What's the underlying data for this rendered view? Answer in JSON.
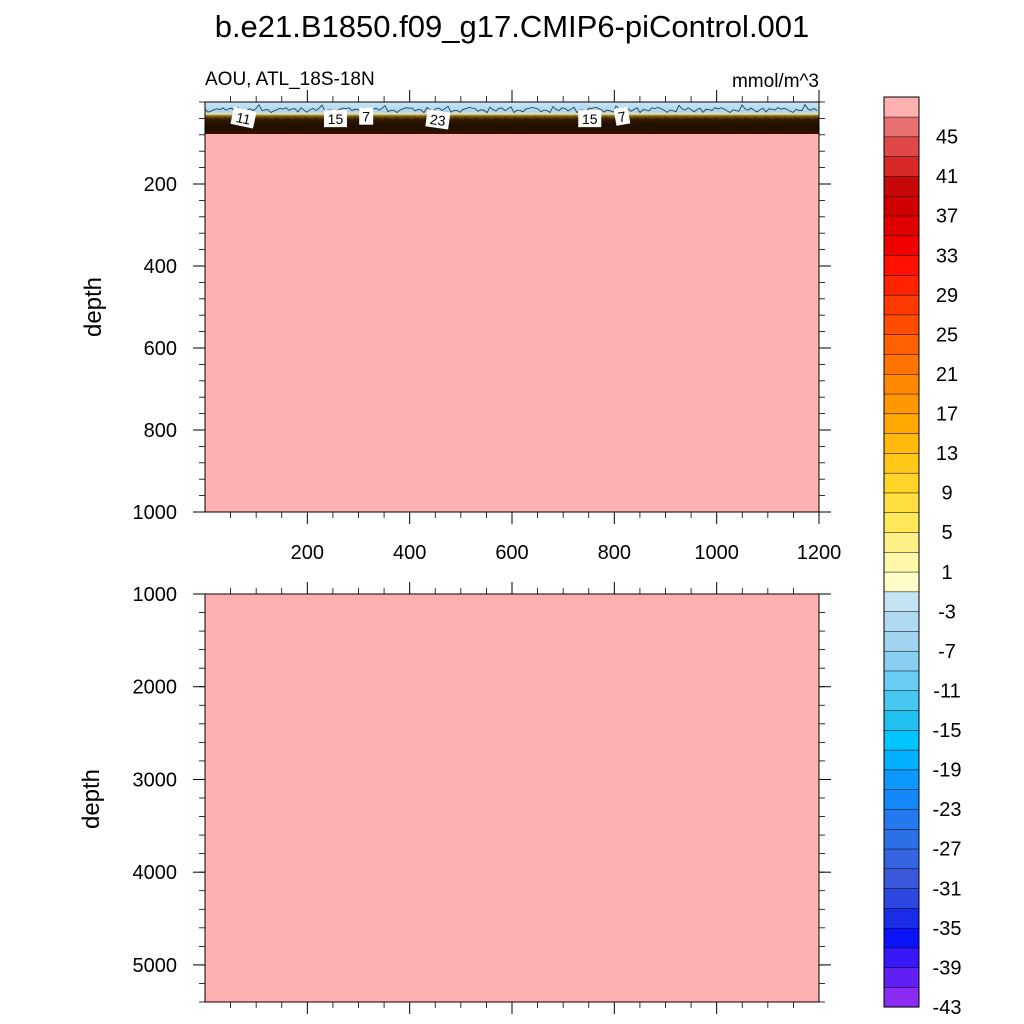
{
  "title": "b.e21.B1850.f09_g17.CMIP6-piControl.001",
  "left_string": "AOU, ATL_18S-18N",
  "right_string": "mmol/m^3",
  "colors": {
    "fill": "#ffb0b0",
    "surface_band": "#b3d8ee",
    "dark_band": "#2a1200",
    "colorbar": [
      "#8b2cf4",
      "#6020f4",
      "#3818f8",
      "#0a12fa",
      "#1a2ce8",
      "#2c48e0",
      "#3a58dc",
      "#3664e0",
      "#2c70e8",
      "#2478f0",
      "#1488f8",
      "#0c98fc",
      "#00b0fc",
      "#00c4fc",
      "#20c0f0",
      "#48c8f0",
      "#68ccf4",
      "#88cff0",
      "#a0d4f0",
      "#b0daf0",
      "#c4e4f4",
      "#fffcc8",
      "#fff8a8",
      "#fff088",
      "#ffe858",
      "#ffe040",
      "#ffd428",
      "#ffc818",
      "#ffb80c",
      "#ffa800",
      "#ff9800",
      "#ff8800",
      "#ff7400",
      "#ff6000",
      "#ff4c00",
      "#ff3a00",
      "#ff2400",
      "#ff1000",
      "#f00000",
      "#e00000",
      "#d00000",
      "#c80808",
      "#d82828",
      "#e04848",
      "#e87070",
      "#ffb0b0"
    ]
  },
  "chart_data": [
    {
      "type": "contour",
      "panel": "upper",
      "xlim": [
        0,
        1200
      ],
      "ylim": [
        1000,
        0
      ],
      "ylabel": "depth",
      "xticks": [
        200,
        400,
        600,
        800,
        1000,
        1200
      ],
      "yticks": [
        200,
        400,
        600,
        800,
        1000
      ],
      "contour_labels": [
        {
          "text": "11",
          "x": 75,
          "y": 52,
          "angle": 12
        },
        {
          "text": "15",
          "x": 255,
          "y": 54,
          "angle": 0
        },
        {
          "text": "7",
          "x": 315,
          "y": 48,
          "angle": 0
        },
        {
          "text": "23",
          "x": 455,
          "y": 56,
          "angle": 8
        },
        {
          "text": "15",
          "x": 752,
          "y": 54,
          "angle": 0
        },
        {
          "text": "7",
          "x": 815,
          "y": 48,
          "angle": -10
        }
      ]
    },
    {
      "type": "contour",
      "panel": "lower",
      "xlim": [
        0,
        1200
      ],
      "ylim": [
        5400,
        1000
      ],
      "ylabel": "depth",
      "yticks": [
        1000,
        2000,
        3000,
        4000,
        5000
      ]
    }
  ],
  "colorbar": {
    "labels": [
      "45",
      "41",
      "37",
      "33",
      "29",
      "25",
      "21",
      "17",
      "13",
      "9",
      "5",
      "1",
      "-3",
      "-7",
      "-11",
      "-15",
      "-19",
      "-23",
      "-27",
      "-31",
      "-35",
      "-39",
      "-43"
    ]
  }
}
